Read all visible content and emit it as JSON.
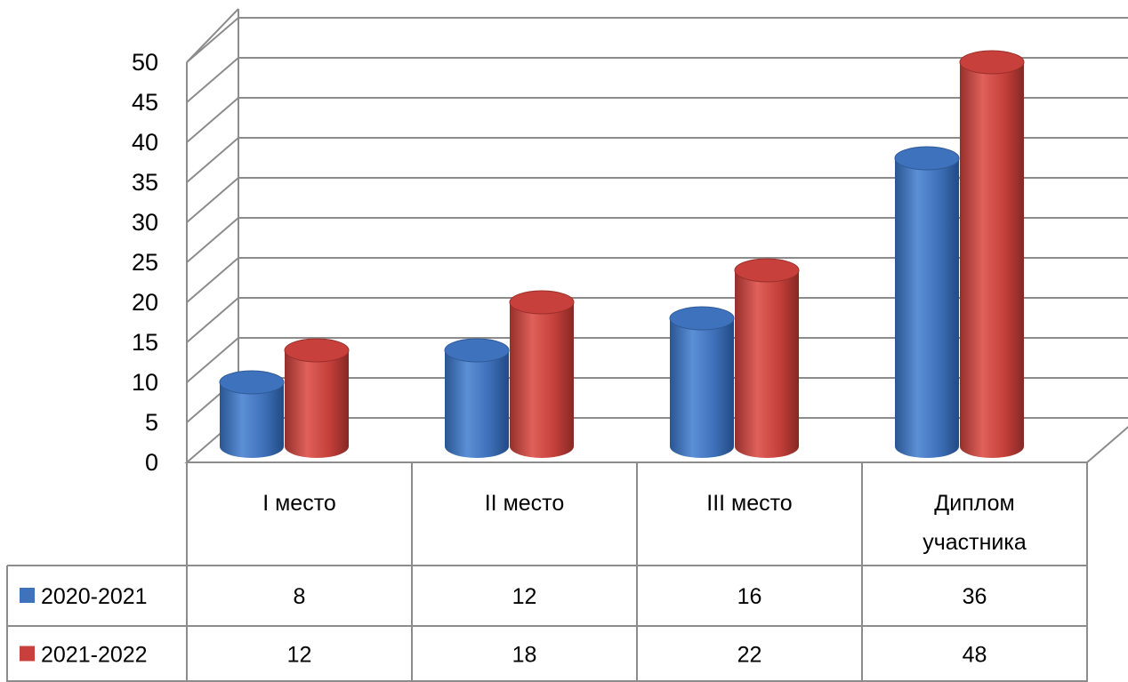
{
  "chart_data": {
    "type": "bar",
    "categories": [
      [
        "I место"
      ],
      [
        "II место"
      ],
      [
        "III место"
      ],
      [
        "Диплом",
        "участника"
      ]
    ],
    "series": [
      {
        "name": "2020-2021",
        "values": [
          8,
          12,
          16,
          36
        ],
        "color": "#3f72bd"
      },
      {
        "name": "2021-2022",
        "values": [
          12,
          18,
          22,
          48
        ],
        "color": "#c8403c"
      }
    ],
    "ylim": [
      0,
      50
    ],
    "yticks": [
      0,
      5,
      10,
      15,
      20,
      25,
      30,
      35,
      40,
      45,
      50
    ],
    "grid": true,
    "three_d": true,
    "data_table": true,
    "legend": "data-table",
    "title": "",
    "xlabel": "",
    "ylabel": ""
  }
}
